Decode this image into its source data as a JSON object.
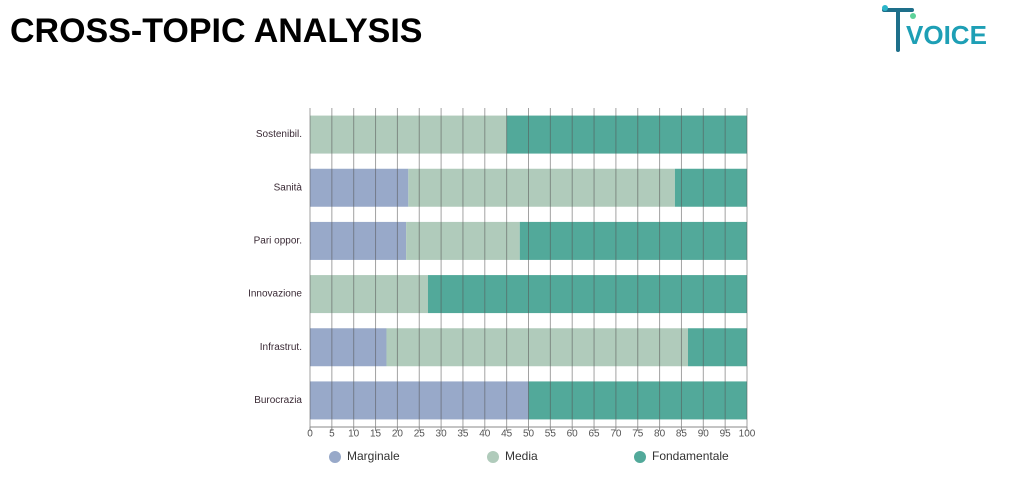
{
  "header": {
    "title": "CROSS-TOPIC ANALYSIS",
    "logo": "VOICE"
  },
  "chart_data": {
    "type": "stacked-barh",
    "categories": [
      "Sostenibil.",
      "Sanità",
      "Pari oppor.",
      "Innovazione",
      "Infrastrut.",
      "Burocrazia"
    ],
    "series": [
      {
        "name": "Marginale",
        "color": "#98a9c9",
        "values": [
          0,
          22.5,
          22,
          0,
          17.5,
          50
        ]
      },
      {
        "name": "Media",
        "color": "#b0cbbb",
        "values": [
          45,
          61,
          26,
          27,
          69,
          0
        ]
      },
      {
        "name": "Fondamentale",
        "color": "#52a99a",
        "values": [
          55,
          16.5,
          52,
          73,
          13.5,
          50
        ]
      }
    ],
    "xlim": [
      0,
      100
    ],
    "xticks": [
      0,
      5,
      10,
      15,
      20,
      25,
      30,
      35,
      40,
      45,
      50,
      55,
      60,
      65,
      70,
      75,
      80,
      85,
      90,
      95,
      100
    ],
    "grid": true,
    "legend": "bottom"
  }
}
